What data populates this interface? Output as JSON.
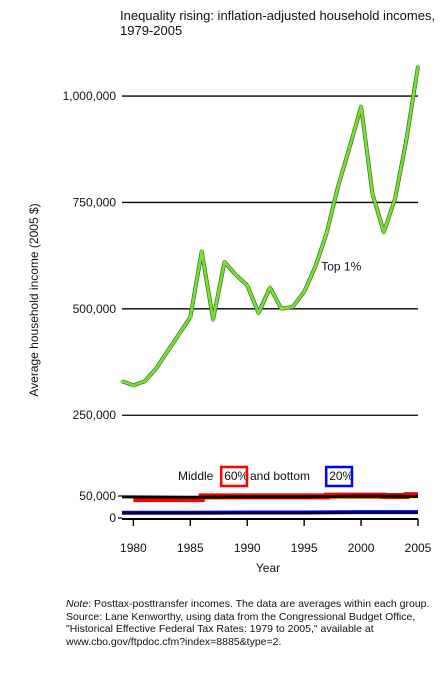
{
  "chart_data": {
    "type": "line",
    "title": "Inequality rising: inflation-adjusted household incomes, 1979-2005",
    "xlabel": "Year",
    "ylabel": "Average household income (2005 $)",
    "xlim": [
      1979,
      2005
    ],
    "x_ticks": [
      1980,
      1985,
      1990,
      1995,
      2000,
      2005
    ],
    "upper_panel": {
      "y_ticks": [
        250000,
        500000,
        750000,
        1000000
      ],
      "y_tick_labels": [
        "250,000",
        "500,000",
        "750,000",
        "1,000,000"
      ],
      "ylim": [
        220000,
        1080000
      ],
      "grid": true
    },
    "lower_panel": {
      "y_ticks": [
        0,
        50000
      ],
      "y_tick_labels": [
        "0",
        "50,000"
      ],
      "ylim": [
        0,
        55000
      ],
      "caption_parts": [
        "Middle ",
        "60%",
        " and bottom ",
        "20%"
      ]
    },
    "annotations": [
      {
        "text": "Top 1%",
        "x": 1996.5,
        "y": 590000
      }
    ],
    "series": [
      {
        "color": "#7ddc3a",
        "panel": "upper",
        "x": [
          1979,
          1980,
          1981,
          1982,
          1983,
          1984,
          1985,
          1986,
          1987,
          1988,
          1989,
          1990,
          1991,
          1992,
          1993,
          1994,
          1995,
          1996,
          1997,
          1998,
          1999,
          2000,
          2001,
          2002,
          2003,
          2004,
          2005
        ],
        "y": [
          330000,
          320000,
          330000,
          360000,
          400000,
          440000,
          480000,
          635000,
          475000,
          610000,
          580000,
          555000,
          490000,
          550000,
          500000,
          505000,
          540000,
          600000,
          680000,
          790000,
          880000,
          975000,
          770000,
          680000,
          760000,
          900000,
          1070000
        ]
      },
      {
        "color": "#ff0000",
        "panel": "lower",
        "x": [
          1980,
          1986,
          1986,
          1997,
          1997,
          2002,
          2002,
          2004,
          2004,
          2005
        ],
        "y": [
          43000,
          43000,
          49000,
          49000,
          51000,
          51000,
          50000,
          50000,
          52000,
          52000
        ]
      },
      {
        "color": "#000000",
        "panel": "lower",
        "x": [
          1979,
          1985,
          1990,
          1995,
          2000,
          2005
        ],
        "y": [
          48000,
          47000,
          48000,
          48000,
          50000,
          49000
        ]
      },
      {
        "color": "#0000ff",
        "panel": "lower",
        "x": [
          1979,
          1985,
          1990,
          1995,
          2000,
          2005
        ],
        "y": [
          12000,
          12000,
          12500,
          12500,
          13500,
          13500
        ]
      },
      {
        "color": "#000000",
        "panel": "lower",
        "x": [
          1979,
          1985,
          1990,
          1995,
          2000,
          2005
        ],
        "y": [
          11000,
          11000,
          11500,
          11500,
          12500,
          12500
        ]
      }
    ],
    "highlight_colors": {
      "middle": "#ff0000",
      "bottom": "#0000ff"
    }
  },
  "note": {
    "lead": "Note",
    "text": ": Posttax-posttransfer incomes. The data are averages within each group. Source: Lane Kenworthy, using data from the Congressional Budget Office, \"Historical Effective Federal Tax Rates: 1979 to 2005,\" available at www.cbo.gov/ftpdoc.cfm?index=8885&type=2."
  }
}
